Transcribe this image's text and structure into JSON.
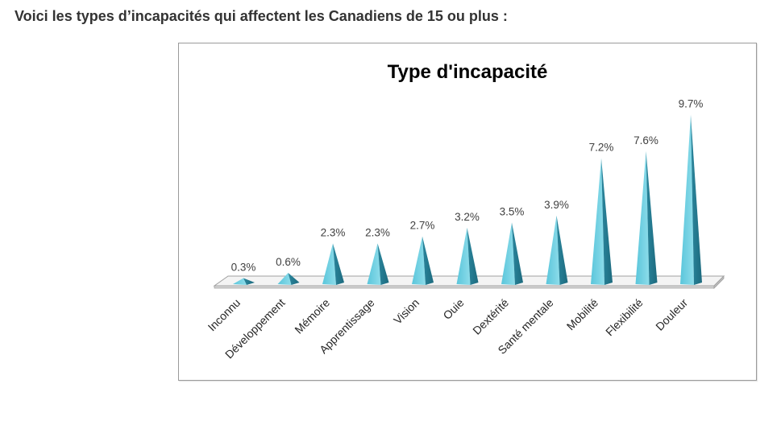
{
  "heading": "Voici les types d’incapacités qui affectent les Canadiens de 15 ou plus :",
  "chart_data": {
    "type": "bar",
    "bar_shape": "pyramid",
    "title": "Type d'incapacité",
    "xlabel": "",
    "ylabel": "",
    "categories": [
      "Inconnu",
      "Développement",
      "Mémoire",
      "Apprentissage",
      "Vision",
      "Ouie",
      "Dextérité",
      "Santé mentale",
      "Mobilité",
      "Flexibilité",
      "Douleur"
    ],
    "values": [
      0.3,
      0.6,
      2.3,
      2.3,
      2.7,
      3.2,
      3.5,
      3.9,
      7.2,
      7.6,
      9.7
    ],
    "data_labels": [
      "0.3%",
      "0.6%",
      "2.3%",
      "2.3%",
      "2.7%",
      "3.2%",
      "3.5%",
      "3.9%",
      "7.2%",
      "7.6%",
      "9.7%"
    ],
    "grid": false,
    "legend": "none",
    "colors": {
      "pyramid_light": "#5ac6db",
      "pyramid_highlight": "#8ddcea",
      "pyramid_dark": "#2a869d",
      "pyramid_shadow": "#1d6a7e"
    }
  }
}
